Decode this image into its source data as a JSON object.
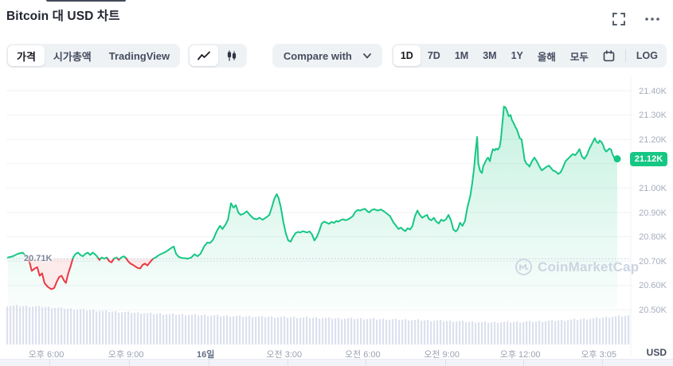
{
  "header": {
    "title": "Bitcoin 대 USD 차트",
    "icons": [
      "fullscreen-icon",
      "more-options-icon"
    ]
  },
  "toolbar": {
    "metric_tabs": [
      {
        "label": "가격",
        "selected": true
      },
      {
        "label": "시가총액",
        "selected": false
      },
      {
        "label": "TradingView",
        "selected": false
      }
    ],
    "chart_type_toggles": [
      {
        "name": "line-chart-icon",
        "selected": true
      },
      {
        "name": "candlestick-icon",
        "selected": false
      }
    ],
    "compare": {
      "label": "Compare with"
    },
    "ranges": [
      {
        "label": "1D",
        "selected": true
      },
      {
        "label": "7D",
        "selected": false
      },
      {
        "label": "1M",
        "selected": false
      },
      {
        "label": "3M",
        "selected": false
      },
      {
        "label": "1Y",
        "selected": false
      },
      {
        "label": "올해",
        "selected": false
      },
      {
        "label": "모두",
        "selected": false
      }
    ],
    "log_label": "LOG"
  },
  "watermark": {
    "text": "CoinMarketCap"
  },
  "chart_data": {
    "type": "area",
    "title": "Bitcoin 대 USD 차트",
    "currency_label": "USD",
    "open_price_k": 20.71,
    "open_price_label": "20.71K",
    "current_price_k": 21.12,
    "current_price_label": "21.12K",
    "y_axis": {
      "min_k": 20.5,
      "max_k": 21.4,
      "tick_step_k": 0.1,
      "tick_labels_top_to_bottom": [
        "21.40K",
        "21.30K",
        "21.20K",
        "21.10K",
        "21.00K",
        "20.90K",
        "20.80K",
        "20.70K",
        "20.60K",
        "20.50K"
      ]
    },
    "x_axis": {
      "ticks": [
        {
          "label": "오후 6:00",
          "f": 0.064,
          "bold": false
        },
        {
          "label": "오후 9:00",
          "f": 0.192,
          "bold": false
        },
        {
          "label": "16일",
          "f": 0.32,
          "bold": true
        },
        {
          "label": "오전 3:00",
          "f": 0.446,
          "bold": false
        },
        {
          "label": "오전 6:00",
          "f": 0.572,
          "bold": false
        },
        {
          "label": "오전 9:00",
          "f": 0.699,
          "bold": false
        },
        {
          "label": "오후 12:00",
          "f": 0.825,
          "bold": false
        },
        {
          "label": "오후 3:05",
          "f": 0.951,
          "bold": false
        }
      ]
    },
    "colors": {
      "up": "#16c784",
      "down": "#ea3943",
      "volume": "#dde1ee",
      "grid": "#f0f2f6",
      "open_line": "#c0c6d4",
      "badge": "#16c784"
    },
    "series_f_priceK": [
      [
        0.0,
        20.715
      ],
      [
        0.008,
        20.72
      ],
      [
        0.016,
        20.73
      ],
      [
        0.024,
        20.735
      ],
      [
        0.03,
        20.72
      ],
      [
        0.035,
        20.7
      ],
      [
        0.039,
        20.66
      ],
      [
        0.044,
        20.67
      ],
      [
        0.048,
        20.675
      ],
      [
        0.052,
        20.64
      ],
      [
        0.056,
        20.65
      ],
      [
        0.06,
        20.61
      ],
      [
        0.065,
        20.595
      ],
      [
        0.071,
        20.585
      ],
      [
        0.076,
        20.59
      ],
      [
        0.08,
        20.615
      ],
      [
        0.084,
        20.635
      ],
      [
        0.088,
        20.64
      ],
      [
        0.092,
        20.62
      ],
      [
        0.095,
        20.61
      ],
      [
        0.099,
        20.65
      ],
      [
        0.103,
        20.68
      ],
      [
        0.107,
        20.715
      ],
      [
        0.111,
        20.73
      ],
      [
        0.115,
        20.735
      ],
      [
        0.119,
        20.725
      ],
      [
        0.123,
        20.72
      ],
      [
        0.127,
        20.73
      ],
      [
        0.131,
        20.735
      ],
      [
        0.135,
        20.725
      ],
      [
        0.139,
        20.735
      ],
      [
        0.142,
        20.73
      ],
      [
        0.146,
        20.72
      ],
      [
        0.15,
        20.705
      ],
      [
        0.154,
        20.715
      ],
      [
        0.158,
        20.71
      ],
      [
        0.162,
        20.715
      ],
      [
        0.166,
        20.7
      ],
      [
        0.17,
        20.695
      ],
      [
        0.174,
        20.71
      ],
      [
        0.178,
        20.715
      ],
      [
        0.182,
        20.705
      ],
      [
        0.186,
        20.715
      ],
      [
        0.19,
        20.72
      ],
      [
        0.193,
        20.715
      ],
      [
        0.197,
        20.7
      ],
      [
        0.201,
        20.69
      ],
      [
        0.205,
        20.685
      ],
      [
        0.209,
        20.678
      ],
      [
        0.213,
        20.672
      ],
      [
        0.217,
        20.67
      ],
      [
        0.221,
        20.685
      ],
      [
        0.225,
        20.69
      ],
      [
        0.229,
        20.682
      ],
      [
        0.233,
        20.695
      ],
      [
        0.237,
        20.707
      ],
      [
        0.24,
        20.712
      ],
      [
        0.244,
        20.718
      ],
      [
        0.248,
        20.725
      ],
      [
        0.252,
        20.73
      ],
      [
        0.258,
        20.737
      ],
      [
        0.263,
        20.745
      ],
      [
        0.268,
        20.754
      ],
      [
        0.272,
        20.76
      ],
      [
        0.276,
        20.73
      ],
      [
        0.28,
        20.718
      ],
      [
        0.285,
        20.713
      ],
      [
        0.29,
        20.712
      ],
      [
        0.295,
        20.71
      ],
      [
        0.301,
        20.715
      ],
      [
        0.306,
        20.728
      ],
      [
        0.311,
        20.72
      ],
      [
        0.316,
        20.73
      ],
      [
        0.322,
        20.76
      ],
      [
        0.327,
        20.776
      ],
      [
        0.332,
        20.775
      ],
      [
        0.337,
        20.79
      ],
      [
        0.343,
        20.825
      ],
      [
        0.348,
        20.845
      ],
      [
        0.352,
        20.832
      ],
      [
        0.357,
        20.85
      ],
      [
        0.361,
        20.87
      ],
      [
        0.366,
        20.938
      ],
      [
        0.37,
        20.92
      ],
      [
        0.374,
        20.93
      ],
      [
        0.378,
        20.9
      ],
      [
        0.382,
        20.89
      ],
      [
        0.387,
        20.895
      ],
      [
        0.392,
        20.905
      ],
      [
        0.397,
        20.89
      ],
      [
        0.403,
        20.875
      ],
      [
        0.408,
        20.872
      ],
      [
        0.413,
        20.878
      ],
      [
        0.418,
        20.87
      ],
      [
        0.424,
        20.88
      ],
      [
        0.429,
        20.89
      ],
      [
        0.433,
        20.92
      ],
      [
        0.437,
        20.955
      ],
      [
        0.441,
        20.975
      ],
      [
        0.444,
        20.96
      ],
      [
        0.448,
        20.92
      ],
      [
        0.452,
        20.86
      ],
      [
        0.456,
        20.815
      ],
      [
        0.46,
        20.785
      ],
      [
        0.464,
        20.78
      ],
      [
        0.468,
        20.8
      ],
      [
        0.472,
        20.815
      ],
      [
        0.476,
        20.82
      ],
      [
        0.48,
        20.818
      ],
      [
        0.484,
        20.823
      ],
      [
        0.488,
        20.82
      ],
      [
        0.491,
        20.818
      ],
      [
        0.495,
        20.822
      ],
      [
        0.499,
        20.81
      ],
      [
        0.503,
        20.785
      ],
      [
        0.507,
        20.8
      ],
      [
        0.511,
        20.825
      ],
      [
        0.515,
        20.855
      ],
      [
        0.519,
        20.862
      ],
      [
        0.523,
        20.858
      ],
      [
        0.527,
        20.853
      ],
      [
        0.531,
        20.861
      ],
      [
        0.535,
        20.857
      ],
      [
        0.539,
        20.865
      ],
      [
        0.542,
        20.862
      ],
      [
        0.546,
        20.868
      ],
      [
        0.55,
        20.872
      ],
      [
        0.554,
        20.868
      ],
      [
        0.558,
        20.871
      ],
      [
        0.562,
        20.877
      ],
      [
        0.566,
        20.885
      ],
      [
        0.57,
        20.902
      ],
      [
        0.574,
        20.91
      ],
      [
        0.578,
        20.908
      ],
      [
        0.582,
        20.912
      ],
      [
        0.586,
        20.915
      ],
      [
        0.59,
        20.905
      ],
      [
        0.593,
        20.9
      ],
      [
        0.597,
        20.91
      ],
      [
        0.601,
        20.913
      ],
      [
        0.607,
        20.908
      ],
      [
        0.612,
        20.912
      ],
      [
        0.617,
        20.905
      ],
      [
        0.622,
        20.895
      ],
      [
        0.627,
        20.885
      ],
      [
        0.633,
        20.858
      ],
      [
        0.637,
        20.845
      ],
      [
        0.641,
        20.832
      ],
      [
        0.645,
        20.838
      ],
      [
        0.648,
        20.83
      ],
      [
        0.652,
        20.823
      ],
      [
        0.656,
        20.835
      ],
      [
        0.66,
        20.83
      ],
      [
        0.664,
        20.845
      ],
      [
        0.668,
        20.885
      ],
      [
        0.672,
        20.908
      ],
      [
        0.676,
        20.89
      ],
      [
        0.68,
        20.878
      ],
      [
        0.684,
        20.885
      ],
      [
        0.688,
        20.89
      ],
      [
        0.691,
        20.873
      ],
      [
        0.695,
        20.868
      ],
      [
        0.699,
        20.878
      ],
      [
        0.703,
        20.862
      ],
      [
        0.707,
        20.855
      ],
      [
        0.711,
        20.87
      ],
      [
        0.715,
        20.865
      ],
      [
        0.719,
        20.872
      ],
      [
        0.723,
        20.89
      ],
      [
        0.727,
        20.868
      ],
      [
        0.731,
        20.83
      ],
      [
        0.735,
        20.822
      ],
      [
        0.738,
        20.83
      ],
      [
        0.742,
        20.858
      ],
      [
        0.746,
        20.845
      ],
      [
        0.75,
        20.865
      ],
      [
        0.754,
        20.92
      ],
      [
        0.757,
        20.95
      ],
      [
        0.759,
        20.97
      ],
      [
        0.762,
        21.02
      ],
      [
        0.765,
        21.08
      ],
      [
        0.767,
        21.14
      ],
      [
        0.77,
        21.21
      ],
      [
        0.772,
        21.1
      ],
      [
        0.775,
        21.07
      ],
      [
        0.778,
        21.062
      ],
      [
        0.78,
        21.09
      ],
      [
        0.783,
        21.105
      ],
      [
        0.786,
        21.12
      ],
      [
        0.788,
        21.125
      ],
      [
        0.791,
        21.11
      ],
      [
        0.793,
        21.135
      ],
      [
        0.796,
        21.16
      ],
      [
        0.799,
        21.155
      ],
      [
        0.801,
        21.162
      ],
      [
        0.804,
        21.158
      ],
      [
        0.807,
        21.17
      ],
      [
        0.809,
        21.2
      ],
      [
        0.812,
        21.28
      ],
      [
        0.814,
        21.335
      ],
      [
        0.817,
        21.33
      ],
      [
        0.82,
        21.31
      ],
      [
        0.822,
        21.295
      ],
      [
        0.825,
        21.3
      ],
      [
        0.827,
        21.28
      ],
      [
        0.83,
        21.267
      ],
      [
        0.833,
        21.25
      ],
      [
        0.835,
        21.242
      ],
      [
        0.838,
        21.22
      ],
      [
        0.84,
        21.205
      ],
      [
        0.843,
        21.2
      ],
      [
        0.846,
        21.15
      ],
      [
        0.848,
        21.115
      ],
      [
        0.851,
        21.1
      ],
      [
        0.854,
        21.095
      ],
      [
        0.856,
        21.088
      ],
      [
        0.86,
        21.11
      ],
      [
        0.864,
        21.125
      ],
      [
        0.868,
        21.11
      ],
      [
        0.872,
        21.09
      ],
      [
        0.876,
        21.073
      ],
      [
        0.88,
        21.08
      ],
      [
        0.884,
        21.088
      ],
      [
        0.888,
        21.092
      ],
      [
        0.892,
        21.08
      ],
      [
        0.895,
        21.072
      ],
      [
        0.899,
        21.068
      ],
      [
        0.903,
        21.058
      ],
      [
        0.907,
        21.065
      ],
      [
        0.911,
        21.085
      ],
      [
        0.915,
        21.11
      ],
      [
        0.919,
        21.12
      ],
      [
        0.923,
        21.13
      ],
      [
        0.927,
        21.14
      ],
      [
        0.931,
        21.135
      ],
      [
        0.935,
        21.148
      ],
      [
        0.938,
        21.16
      ],
      [
        0.942,
        21.13
      ],
      [
        0.946,
        21.12
      ],
      [
        0.95,
        21.135
      ],
      [
        0.954,
        21.16
      ],
      [
        0.958,
        21.18
      ],
      [
        0.961,
        21.195
      ],
      [
        0.963,
        21.205
      ],
      [
        0.966,
        21.19
      ],
      [
        0.969,
        21.185
      ],
      [
        0.971,
        21.195
      ],
      [
        0.974,
        21.19
      ],
      [
        0.977,
        21.175
      ],
      [
        0.979,
        21.16
      ],
      [
        0.982,
        21.15
      ],
      [
        0.984,
        21.155
      ],
      [
        0.987,
        21.162
      ],
      [
        0.99,
        21.158
      ],
      [
        0.992,
        21.14
      ],
      [
        0.995,
        21.125
      ],
      [
        0.997,
        21.118
      ],
      [
        1.0,
        21.12
      ]
    ],
    "volume_envelope_f_heightPx": [
      [
        0.0,
        49
      ],
      [
        0.03,
        48.5
      ],
      [
        0.07,
        47
      ],
      [
        0.1,
        45
      ],
      [
        0.16,
        42
      ],
      [
        0.25,
        38.5
      ],
      [
        0.32,
        37
      ],
      [
        0.38,
        35.5
      ],
      [
        0.45,
        34.5
      ],
      [
        0.51,
        33.5
      ],
      [
        0.57,
        32.5
      ],
      [
        0.63,
        31.5
      ],
      [
        0.7,
        30
      ],
      [
        0.74,
        29
      ],
      [
        0.77,
        28
      ],
      [
        0.82,
        28.5
      ],
      [
        0.86,
        29.5
      ],
      [
        0.9,
        31
      ],
      [
        0.94,
        33
      ],
      [
        0.97,
        35
      ],
      [
        1.0,
        36.5
      ]
    ]
  }
}
